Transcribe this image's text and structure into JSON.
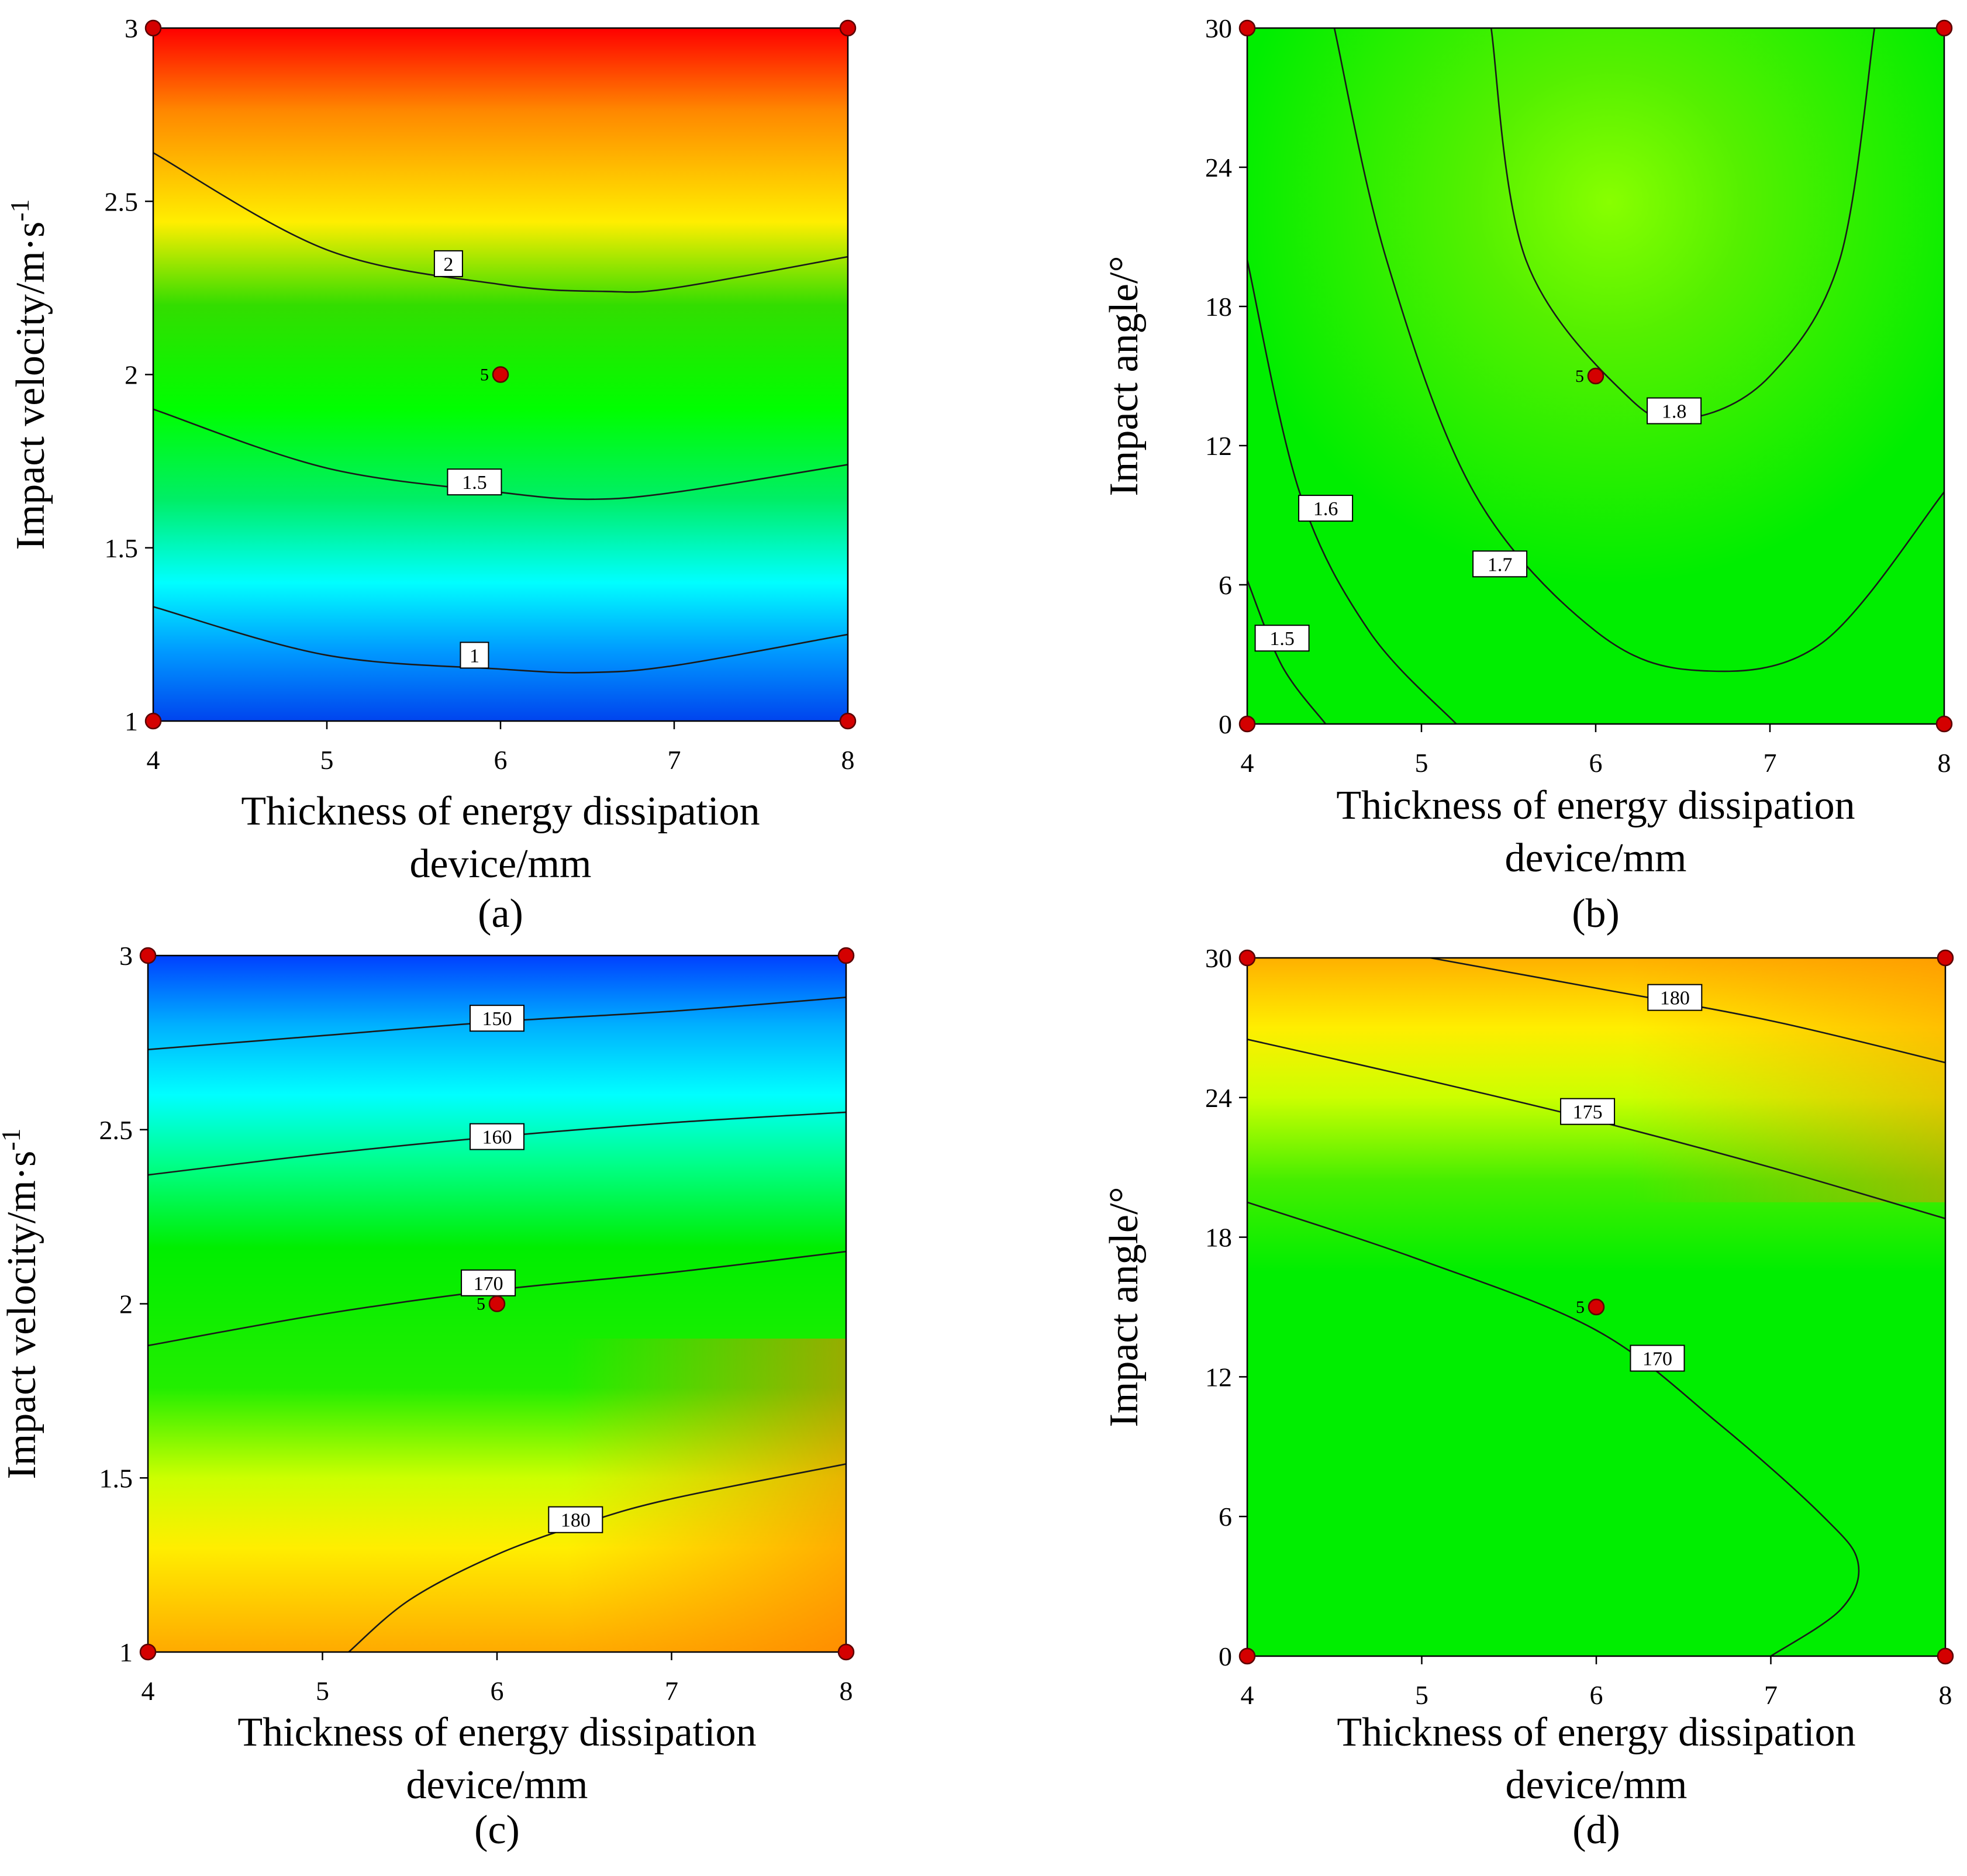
{
  "chart_data": [
    {
      "id": "a",
      "type": "heatmap",
      "panel_label": "(a)",
      "xlabel": "Thickness of energy dissipation device/mm",
      "xlabel_lines": [
        "Thickness of energy dissipation",
        "device/mm"
      ],
      "ylabel": "Impact velocity/m·s",
      "ylabel_superscript": "-1",
      "xlim": [
        4,
        8
      ],
      "ylim": [
        1,
        3
      ],
      "xticks": [
        "4",
        "5",
        "6",
        "7",
        "8"
      ],
      "yticks": [
        "1",
        "1.5",
        "2",
        "2.5",
        "3"
      ],
      "colormap": "blue-to-red (low-to-high)",
      "response_range": [
        0.8,
        2.8
      ],
      "contours": [
        {
          "level": "1",
          "points": [
            [
              4,
              1.33
            ],
            [
              5,
              1.19
            ],
            [
              6,
              1.15
            ],
            [
              6.5,
              1.14
            ],
            [
              7,
              1.16
            ],
            [
              8,
              1.25
            ]
          ],
          "label_at": [
            5.85,
            1.19
          ]
        },
        {
          "level": "1.5",
          "points": [
            [
              4,
              1.9
            ],
            [
              5,
              1.73
            ],
            [
              6,
              1.66
            ],
            [
              6.5,
              1.64
            ],
            [
              7,
              1.66
            ],
            [
              8,
              1.74
            ]
          ],
          "label_at": [
            5.85,
            1.69
          ]
        },
        {
          "level": "2",
          "points": [
            [
              4,
              2.64
            ],
            [
              5,
              2.36
            ],
            [
              6,
              2.26
            ],
            [
              6.6,
              2.24
            ],
            [
              7,
              2.25
            ],
            [
              8,
              2.34
            ]
          ],
          "label_at": [
            5.7,
            2.32
          ]
        }
      ],
      "design_points": [
        [
          4,
          1
        ],
        [
          8,
          1
        ],
        [
          4,
          3
        ],
        [
          8,
          3
        ],
        [
          6,
          2
        ]
      ],
      "center_point": {
        "x": 6,
        "y": 2,
        "label": "5"
      }
    },
    {
      "id": "b",
      "type": "heatmap",
      "panel_label": "(b)",
      "xlabel": "Thickness of energy dissipation device/mm",
      "xlabel_lines": [
        "Thickness of energy dissipation",
        "device/mm"
      ],
      "ylabel": "Impact angle/°",
      "ylabel_superscript": "",
      "xlim": [
        4,
        8
      ],
      "ylim": [
        0,
        30
      ],
      "xticks": [
        "4",
        "5",
        "6",
        "7",
        "8"
      ],
      "yticks": [
        "0",
        "6",
        "12",
        "18",
        "24",
        "30"
      ],
      "colormap": "blue-to-red (low-to-high)",
      "response_range": [
        1.5,
        1.9
      ],
      "contours": [
        {
          "level": "1.5",
          "points": [
            [
              4,
              6.2
            ],
            [
              4.2,
              2.5
            ],
            [
              4.45,
              0
            ]
          ],
          "label_at": [
            4.2,
            3.7
          ]
        },
        {
          "level": "1.6",
          "points": [
            [
              4,
              20
            ],
            [
              4.3,
              10
            ],
            [
              4.7,
              4
            ],
            [
              5.2,
              0
            ]
          ],
          "label_at": [
            4.45,
            9.3
          ]
        },
        {
          "level": "1.7",
          "points": [
            [
              4.5,
              30
            ],
            [
              4.8,
              20
            ],
            [
              5.3,
              10
            ],
            [
              6,
              4
            ],
            [
              6.6,
              2.3
            ],
            [
              7.3,
              3.5
            ],
            [
              8,
              10
            ]
          ],
          "label_at": [
            5.45,
            6.9
          ]
        },
        {
          "level": "1.8",
          "points": [
            [
              5.4,
              30
            ],
            [
              5.6,
              20
            ],
            [
              6.2,
              14
            ],
            [
              6.55,
              13.2
            ],
            [
              7.0,
              15
            ],
            [
              7.4,
              20
            ],
            [
              7.6,
              30
            ]
          ],
          "label_at": [
            6.45,
            13.5
          ]
        }
      ],
      "design_points": [
        [
          4,
          0
        ],
        [
          8,
          0
        ],
        [
          4,
          30
        ],
        [
          8,
          30
        ],
        [
          6,
          15
        ]
      ],
      "center_point": {
        "x": 6,
        "y": 15,
        "label": "5"
      }
    },
    {
      "id": "c",
      "type": "heatmap",
      "panel_label": "(c)",
      "xlabel": "Thickness of energy dissipation device/mm",
      "xlabel_lines": [
        "Thickness of energy dissipation",
        "device/mm"
      ],
      "ylabel": "Impact velocity/m·s",
      "ylabel_superscript": "-1",
      "xlim": [
        4,
        8
      ],
      "ylim": [
        1,
        3
      ],
      "xticks": [
        "4",
        "5",
        "6",
        "7",
        "8"
      ],
      "yticks": [
        "1",
        "1.5",
        "2",
        "2.5",
        "3"
      ],
      "colormap": "red-to-blue (low velocity = high value)",
      "response_range": [
        143,
        190
      ],
      "contours": [
        {
          "level": "150",
          "points": [
            [
              4,
              2.73
            ],
            [
              5,
              2.77
            ],
            [
              6,
              2.81
            ],
            [
              7,
              2.84
            ],
            [
              8,
              2.88
            ]
          ],
          "label_at": [
            6,
            2.82
          ]
        },
        {
          "level": "160",
          "points": [
            [
              4,
              2.37
            ],
            [
              5,
              2.43
            ],
            [
              6,
              2.48
            ],
            [
              7,
              2.52
            ],
            [
              8,
              2.55
            ]
          ],
          "label_at": [
            6,
            2.48
          ]
        },
        {
          "level": "170",
          "points": [
            [
              4,
              1.88
            ],
            [
              5,
              1.97
            ],
            [
              6,
              2.04
            ],
            [
              7,
              2.09
            ],
            [
              8,
              2.15
            ]
          ],
          "label_at": [
            5.95,
            2.06
          ]
        },
        {
          "level": "180",
          "points": [
            [
              5.15,
              1
            ],
            [
              5.5,
              1.15
            ],
            [
              6,
              1.28
            ],
            [
              6.5,
              1.37
            ],
            [
              7,
              1.44
            ],
            [
              8,
              1.54
            ]
          ],
          "label_at": [
            6.45,
            1.38
          ]
        }
      ],
      "design_points": [
        [
          4,
          1
        ],
        [
          8,
          1
        ],
        [
          4,
          3
        ],
        [
          8,
          3
        ],
        [
          6,
          2
        ]
      ],
      "center_point": {
        "x": 6,
        "y": 2,
        "label": "5"
      }
    },
    {
      "id": "d",
      "type": "heatmap",
      "panel_label": "(d)",
      "xlabel": "Thickness of energy dissipation device/mm",
      "xlabel_lines": [
        "Thickness of energy dissipation",
        "device/mm"
      ],
      "ylabel": "Impact angle/°",
      "ylabel_superscript": "",
      "xlim": [
        4,
        8
      ],
      "ylim": [
        0,
        30
      ],
      "xticks": [
        "4",
        "5",
        "6",
        "7",
        "8"
      ],
      "yticks": [
        "0",
        "6",
        "12",
        "18",
        "24",
        "30"
      ],
      "colormap": "blue-to-red (low-to-high)",
      "response_range": [
        166,
        186
      ],
      "contours": [
        {
          "level": "170",
          "points": [
            [
              4,
              19.5
            ],
            [
              5,
              17
            ],
            [
              6,
              14
            ],
            [
              6.7,
              10
            ],
            [
              7.3,
              6
            ],
            [
              7.5,
              4
            ],
            [
              7.4,
              2
            ],
            [
              7,
              0
            ]
          ],
          "label_at": [
            6.35,
            12.8
          ]
        },
        {
          "level": "175",
          "points": [
            [
              4,
              26.5
            ],
            [
              5,
              24.8
            ],
            [
              6,
              23
            ],
            [
              7,
              21
            ],
            [
              8,
              18.8
            ]
          ],
          "label_at": [
            5.95,
            23.4
          ]
        },
        {
          "level": "180",
          "points": [
            [
              5.05,
              30
            ],
            [
              6,
              28.7
            ],
            [
              7,
              27.3
            ],
            [
              8,
              25.5
            ]
          ],
          "label_at": [
            6.45,
            28.3
          ]
        }
      ],
      "design_points": [
        [
          4,
          0
        ],
        [
          8,
          0
        ],
        [
          4,
          30
        ],
        [
          8,
          30
        ],
        [
          6,
          15
        ]
      ],
      "center_point": {
        "x": 6,
        "y": 15,
        "label": "5"
      }
    }
  ]
}
